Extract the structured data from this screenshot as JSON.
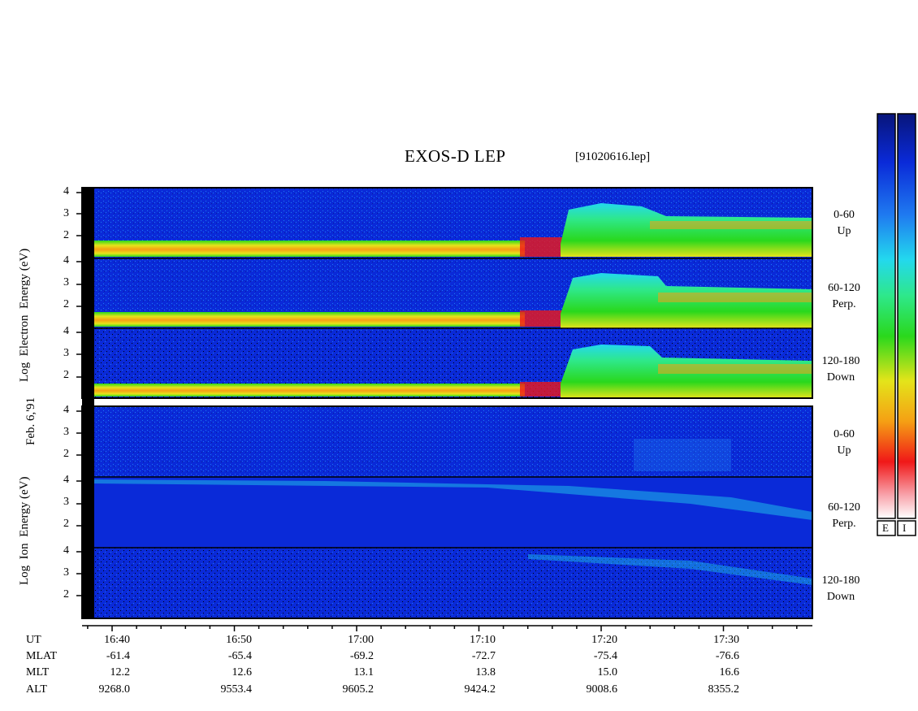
{
  "title": "EXOS-D LEP",
  "file_name": "[91020616.lep]",
  "date_label": "Feb. 6,'91",
  "colors": {
    "background": "#0a2ad8",
    "frame": "#000000",
    "black_margin": "#000000"
  },
  "colorbars": [
    {
      "id": "E",
      "label": "E"
    },
    {
      "id": "I",
      "label": "I"
    }
  ],
  "colorbar_scale": [
    "#08157a",
    "#0a2ad8",
    "#1f7af0",
    "#23d8ee",
    "#2ee88a",
    "#2ad81c",
    "#e4e41a",
    "#f5a014",
    "#f01818",
    "#f8a0a8",
    "#ffffff"
  ],
  "panels": [
    {
      "group": "Log Electron Energy (eV)",
      "y_label_parts": [
        "Log",
        "Electron",
        "Energy (eV)"
      ],
      "channels": [
        {
          "angle": "0-60",
          "dir": "Up"
        },
        {
          "angle": "60-120",
          "dir": "Perp."
        },
        {
          "angle": "120-180",
          "dir": "Down"
        }
      ]
    },
    {
      "group": "Log Ion Energy (eV)",
      "y_label_parts": [
        "Log",
        "Ion",
        "Energy (eV)"
      ],
      "channels": [
        {
          "angle": "0-60",
          "dir": "Up"
        },
        {
          "angle": "60-120",
          "dir": "Perp."
        },
        {
          "angle": "120-180",
          "dir": "Down"
        }
      ]
    }
  ],
  "chart_data": {
    "type": "heatmap",
    "title": "EXOS-D LEP",
    "y_ticks": [
      "4",
      "3",
      "2"
    ],
    "y_ticks_bottom": [
      "4",
      "3",
      "2"
    ],
    "ylim": [
      1,
      4
    ],
    "x_ticks": [
      "16:40",
      "16:50",
      "17:00",
      "17:10",
      "17:20",
      "17:30"
    ],
    "orbit_rows": [
      {
        "label": "UT",
        "values": []
      },
      {
        "label": "MLAT",
        "values": [
          "-61.4",
          "-65.4",
          "-69.2",
          "-72.7",
          "-75.4",
          "-76.6"
        ]
      },
      {
        "label": "MLT",
        "values": [
          "12.2",
          "12.6",
          "13.1",
          "13.8",
          "15.0",
          "16.6"
        ]
      },
      {
        "label": "ALT",
        "values": [
          "9268.0",
          "9553.4",
          "9605.2",
          "9424.2",
          "9008.6",
          "8355.2"
        ]
      }
    ]
  }
}
